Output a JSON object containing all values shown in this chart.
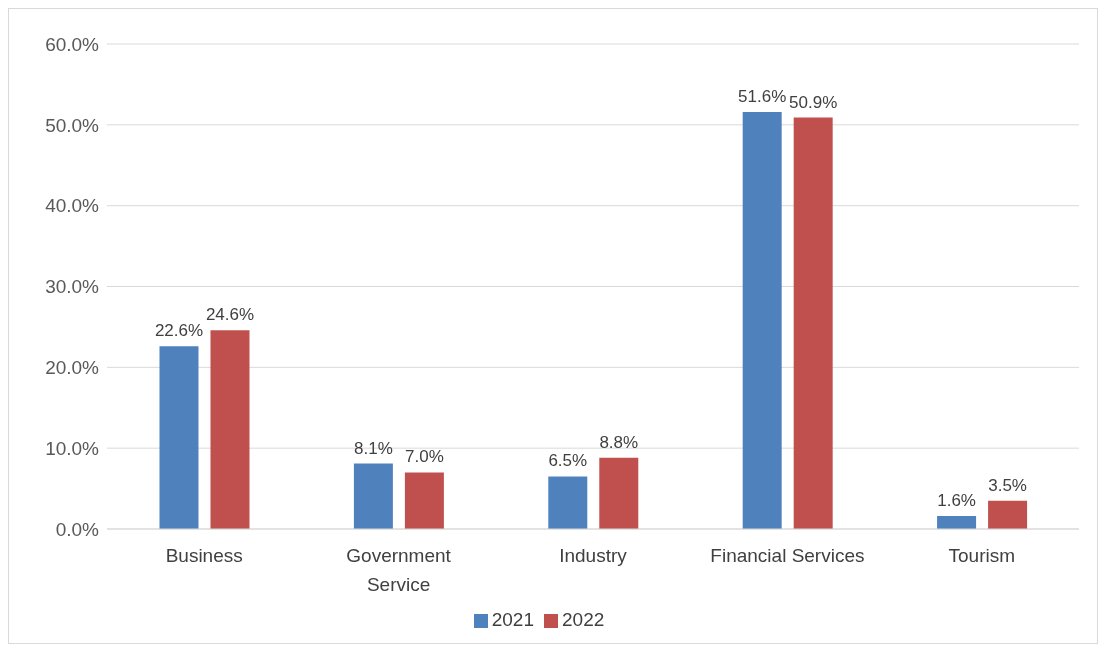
{
  "chart_data": {
    "type": "bar",
    "categories": [
      "Business",
      "Government Service",
      "Industry",
      "Financial Services",
      "Tourism"
    ],
    "series": [
      {
        "name": "2021",
        "color": "#4f81bd",
        "values": [
          22.6,
          8.1,
          6.5,
          51.6,
          1.6
        ],
        "value_labels": [
          "22.6%",
          "8.1%",
          "6.5%",
          "51.6%",
          "1.6%"
        ]
      },
      {
        "name": "2022",
        "color": "#c0504d",
        "values": [
          24.6,
          7.0,
          8.8,
          50.9,
          3.5
        ],
        "value_labels": [
          "24.6%",
          "7.0%",
          "8.8%",
          "50.9%",
          "3.5%"
        ]
      }
    ],
    "ylim": [
      0,
      60
    ],
    "yticks": [
      {
        "value": 0,
        "label": "0.0%"
      },
      {
        "value": 10,
        "label": "10.0%"
      },
      {
        "value": 20,
        "label": "20.0%"
      },
      {
        "value": 30,
        "label": "30.0%"
      },
      {
        "value": 40,
        "label": "40.0%"
      },
      {
        "value": 50,
        "label": "50.0%"
      },
      {
        "value": 60,
        "label": "60.0%"
      }
    ],
    "grid": "y",
    "legend": "bottom"
  }
}
